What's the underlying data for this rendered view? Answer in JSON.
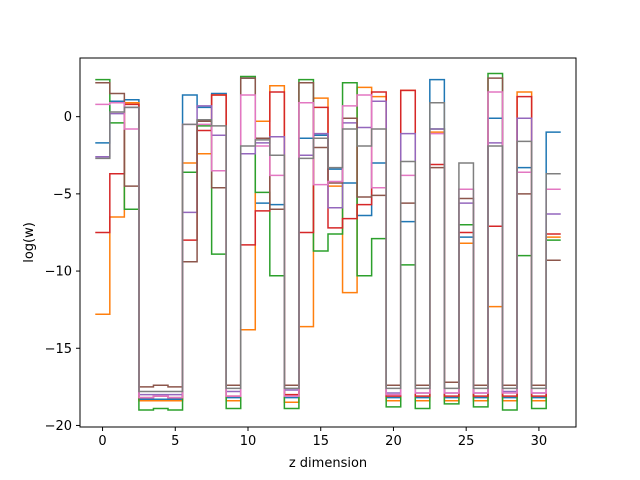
{
  "chart_data": {
    "type": "line",
    "drawstyle": "steps-mid",
    "xlabel": "z dimension",
    "ylabel": "log(w)",
    "xlim": [
      -1.55,
      32.55
    ],
    "ylim": [
      -20.1,
      3.8
    ],
    "xticks": [
      0,
      5,
      10,
      15,
      20,
      25,
      30
    ],
    "yticks": [
      0,
      -5,
      -10,
      -15,
      -20
    ],
    "grid": false,
    "legend": "none",
    "series": [
      {
        "color": "#1f77b4",
        "values": [
          -1.7,
          1.0,
          1.1,
          -18.3,
          -18.3,
          -18.3,
          1.4,
          0.6,
          1.5,
          -18.2,
          2.5,
          -5.6,
          -5.7,
          -18.2,
          -1.4,
          -1.2,
          -3.4,
          -4.3,
          -6.4,
          -3.0,
          -18.2,
          -6.8,
          -18.2,
          2.4,
          -18.2,
          -7.8,
          -18.2,
          -0.1,
          -18.2,
          -3.3,
          -18.2,
          -1.0
        ]
      },
      {
        "color": "#ff7f0e",
        "values": [
          -12.8,
          -6.5,
          0.9,
          -18.4,
          -18.4,
          -18.4,
          -3.0,
          -2.4,
          1.4,
          -18.4,
          -13.8,
          -0.3,
          2.0,
          -18.5,
          -13.6,
          1.2,
          -4.5,
          -11.4,
          1.9,
          1.3,
          -18.4,
          1.7,
          -18.4,
          -1.0,
          -18.4,
          -8.2,
          -18.4,
          -12.3,
          -18.4,
          1.6,
          -18.4,
          -7.8
        ]
      },
      {
        "color": "#2ca02c",
        "values": [
          2.4,
          -0.4,
          -6.0,
          -19.0,
          -18.9,
          -19.0,
          -3.6,
          -0.6,
          -8.9,
          -18.9,
          2.6,
          -4.9,
          -10.3,
          -18.9,
          2.4,
          -8.7,
          -7.6,
          2.2,
          -10.3,
          -7.9,
          -18.8,
          -9.6,
          -18.9,
          -0.8,
          -18.6,
          -7.0,
          -18.8,
          2.8,
          -19.0,
          -9.0,
          -18.9,
          -8.0
        ]
      },
      {
        "color": "#d62728",
        "values": [
          -7.5,
          -3.7,
          0.8,
          -18.2,
          -18.1,
          -18.2,
          -8.0,
          -0.9,
          1.4,
          -18.1,
          -8.3,
          -6.1,
          1.6,
          -18.0,
          -7.5,
          0.6,
          -7.2,
          -6.6,
          -5.7,
          1.6,
          -18.1,
          1.7,
          -18.1,
          -3.1,
          -18.1,
          -7.5,
          -18.1,
          -7.1,
          -18.1,
          1.3,
          -18.1,
          -7.6
        ]
      },
      {
        "color": "#9467bd",
        "values": [
          -2.6,
          0.2,
          0.6,
          -18.0,
          -18.0,
          -18.0,
          -6.2,
          0.7,
          -1.2,
          -17.8,
          -2.4,
          -1.7,
          -1.3,
          -17.7,
          -2.5,
          -1.1,
          -5.9,
          -0.4,
          -0.7,
          1.0,
          -17.9,
          -1.1,
          -17.9,
          -0.8,
          -17.9,
          -5.6,
          -17.9,
          -1.7,
          -17.8,
          -0.1,
          -17.9,
          -6.3
        ]
      },
      {
        "color": "#8c564b",
        "values": [
          2.2,
          1.5,
          -4.5,
          -17.5,
          -17.4,
          -17.5,
          -9.4,
          -0.3,
          -4.6,
          -17.4,
          2.5,
          -1.4,
          -6.0,
          -17.4,
          2.2,
          -2.0,
          -4.3,
          -0.1,
          -5.2,
          -5.1,
          -17.4,
          -5.6,
          -17.4,
          -3.3,
          -17.2,
          -5.3,
          -17.4,
          2.5,
          -17.4,
          -5.0,
          -17.4,
          -9.3
        ]
      },
      {
        "color": "#e377c2",
        "values": [
          0.8,
          0.9,
          -0.8,
          -18.2,
          -18.1,
          -18.2,
          -0.5,
          -0.5,
          -3.5,
          -18.1,
          1.4,
          -1.9,
          -3.8,
          -18.1,
          0.9,
          -4.4,
          -4.2,
          0.7,
          1.4,
          -4.6,
          -18.0,
          -3.8,
          -17.9,
          -1.1,
          -17.9,
          -4.7,
          -17.9,
          1.6,
          -17.9,
          -3.6,
          -17.9,
          -4.7
        ]
      },
      {
        "color": "#7f7f7f",
        "values": [
          -2.7,
          0.3,
          0.6,
          -17.8,
          -17.8,
          -17.8,
          -0.5,
          -0.2,
          -0.6,
          -17.6,
          -1.9,
          -1.5,
          -2.5,
          -17.6,
          -2.7,
          -1.4,
          -3.3,
          -0.8,
          -1.9,
          -0.8,
          -17.6,
          -2.9,
          -17.6,
          0.9,
          -17.6,
          -3.0,
          -17.6,
          -1.9,
          -17.6,
          -1.6,
          -17.6,
          -3.7
        ]
      }
    ]
  }
}
